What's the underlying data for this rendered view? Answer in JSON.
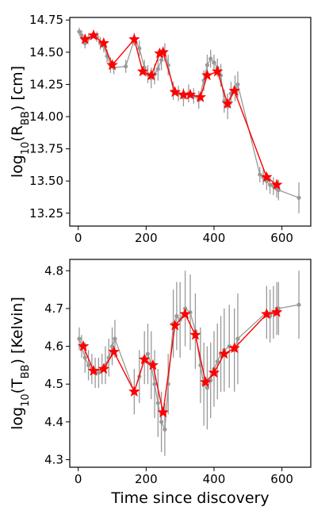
{
  "chart_data": [
    {
      "type": "scatter",
      "ylabel": "log10(RBB) [cm]",
      "ylabel_parts": {
        "pre": "log",
        "sub": "10",
        "mid": "(R",
        "sub2": "BB",
        "post": ") [cm]"
      },
      "xlim": [
        -25,
        685
      ],
      "ylim": [
        13.15,
        14.77
      ],
      "xticks": [
        0,
        200,
        400,
        600
      ],
      "yticks": [
        13.25,
        13.5,
        13.75,
        14.0,
        14.25,
        14.5,
        14.75
      ],
      "ytick_labels": [
        "13.25",
        "13.50",
        "13.75",
        "14.00",
        "14.25",
        "14.50",
        "14.75"
      ],
      "grid": false,
      "series": [
        {
          "style": "grey-errorbar",
          "color": "#999999",
          "x": [
            3,
            10,
            20,
            30,
            45,
            55,
            65,
            75,
            85,
            95,
            105,
            140,
            165,
            180,
            195,
            205,
            215,
            225,
            235,
            245,
            255,
            265,
            280,
            295,
            310,
            325,
            340,
            355,
            370,
            380,
            390,
            400,
            410,
            420,
            430,
            440,
            450,
            462,
            470,
            535,
            545,
            555,
            565,
            575,
            585,
            590,
            650
          ],
          "y": [
            14.66,
            14.63,
            14.57,
            14.61,
            14.64,
            14.62,
            14.57,
            14.55,
            14.47,
            14.4,
            14.38,
            14.39,
            14.6,
            14.53,
            14.38,
            14.33,
            14.3,
            14.33,
            14.37,
            14.44,
            14.5,
            14.4,
            14.2,
            14.18,
            14.15,
            14.18,
            14.16,
            14.13,
            14.28,
            14.4,
            14.45,
            14.42,
            14.38,
            14.32,
            14.12,
            14.08,
            14.18,
            14.22,
            14.25,
            13.55,
            13.53,
            13.5,
            13.47,
            13.46,
            13.44,
            13.43,
            13.37
          ],
          "err": [
            0.03,
            0.04,
            0.04,
            0.03,
            0.03,
            0.04,
            0.05,
            0.05,
            0.05,
            0.06,
            0.05,
            0.05,
            0.05,
            0.06,
            0.06,
            0.07,
            0.08,
            0.08,
            0.09,
            0.08,
            0.07,
            0.08,
            0.07,
            0.06,
            0.07,
            0.07,
            0.06,
            0.07,
            0.08,
            0.08,
            0.07,
            0.06,
            0.07,
            0.09,
            0.09,
            0.1,
            0.09,
            0.1,
            0.1,
            0.06,
            0.06,
            0.07,
            0.07,
            0.07,
            0.07,
            0.08,
            0.12
          ]
        },
        {
          "style": "red-star-line",
          "color": "#ff0000",
          "x": [
            20,
            45,
            75,
            100,
            165,
            190,
            215,
            240,
            250,
            285,
            310,
            330,
            360,
            380,
            410,
            440,
            460,
            555,
            585
          ],
          "y": [
            14.6,
            14.63,
            14.57,
            14.4,
            14.6,
            14.35,
            14.32,
            14.49,
            14.5,
            14.19,
            14.17,
            14.17,
            14.15,
            14.32,
            14.35,
            14.1,
            14.2,
            13.53,
            13.47
          ]
        }
      ]
    },
    {
      "type": "scatter",
      "xlabel": "Time since discovery",
      "ylabel": "log10(TBB) [Kelvin]",
      "ylabel_parts": {
        "pre": "log",
        "sub": "10",
        "mid": "(T",
        "sub2": "BB",
        "post": ") [Kelvin]"
      },
      "xlim": [
        -25,
        685
      ],
      "ylim": [
        4.28,
        4.83
      ],
      "xticks": [
        0,
        200,
        400,
        600
      ],
      "yticks": [
        4.3,
        4.4,
        4.5,
        4.6,
        4.7,
        4.8
      ],
      "ytick_labels": [
        "4.3",
        "4.4",
        "4.5",
        "4.6",
        "4.7",
        "4.8"
      ],
      "grid": false,
      "series": [
        {
          "style": "grey-errorbar",
          "color": "#999999",
          "x": [
            3,
            10,
            20,
            30,
            40,
            50,
            60,
            70,
            80,
            90,
            100,
            108,
            165,
            180,
            195,
            205,
            215,
            225,
            235,
            245,
            255,
            265,
            280,
            290,
            300,
            315,
            330,
            345,
            360,
            370,
            380,
            390,
            400,
            410,
            420,
            430,
            445,
            460,
            470,
            555,
            565,
            575,
            585,
            590,
            650
          ],
          "y": [
            4.62,
            4.6,
            4.57,
            4.55,
            4.54,
            4.53,
            4.53,
            4.54,
            4.55,
            4.57,
            4.6,
            4.62,
            4.48,
            4.52,
            4.57,
            4.58,
            4.55,
            4.5,
            4.45,
            4.4,
            4.38,
            4.5,
            4.66,
            4.68,
            4.67,
            4.7,
            4.69,
            4.64,
            4.55,
            4.5,
            4.49,
            4.51,
            4.54,
            4.56,
            4.58,
            4.59,
            4.6,
            4.59,
            4.62,
            4.69,
            4.68,
            4.69,
            4.7,
            4.7,
            4.71
          ],
          "err": [
            0.03,
            0.03,
            0.04,
            0.04,
            0.04,
            0.04,
            0.04,
            0.04,
            0.05,
            0.05,
            0.05,
            0.05,
            0.06,
            0.07,
            0.07,
            0.08,
            0.09,
            0.09,
            0.09,
            0.08,
            0.07,
            0.08,
            0.09,
            0.09,
            0.1,
            0.1,
            0.1,
            0.1,
            0.1,
            0.11,
            0.11,
            0.1,
            0.1,
            0.1,
            0.1,
            0.11,
            0.11,
            0.11,
            0.12,
            0.07,
            0.07,
            0.07,
            0.07,
            0.07,
            0.09
          ]
        },
        {
          "style": "red-star-line",
          "color": "#ff0000",
          "x": [
            15,
            45,
            75,
            105,
            165,
            195,
            220,
            250,
            285,
            315,
            345,
            375,
            400,
            430,
            460,
            555,
            585
          ],
          "y": [
            4.6,
            4.535,
            4.54,
            4.585,
            4.48,
            4.565,
            4.55,
            4.425,
            4.655,
            4.685,
            4.63,
            4.505,
            4.53,
            4.58,
            4.595,
            4.685,
            4.69
          ]
        }
      ]
    }
  ]
}
